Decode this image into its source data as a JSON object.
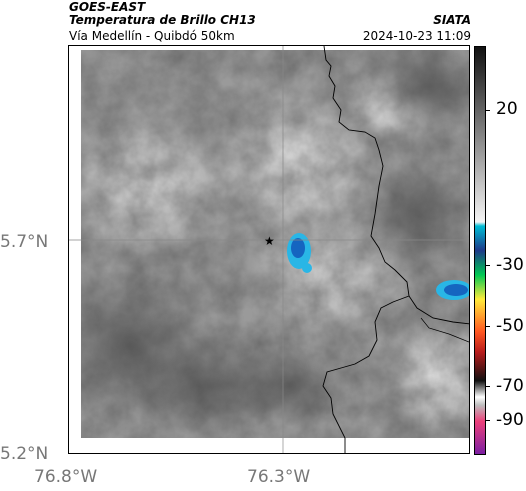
{
  "header": {
    "satellite": "GOES-EAST",
    "product": "Temperatura de Brillo CH13",
    "region": "Vía Medellín - Quibdó 50km",
    "organization": "SIATA",
    "datetime": "2024-10-23 11:09"
  },
  "map": {
    "lat_labels": [
      "5.7°N",
      "5.2°N"
    ],
    "lon_labels": [
      "76.8°W",
      "76.3°W"
    ],
    "marker": "star",
    "colors": {
      "gray_light": "#d9d9d9",
      "gray_dark": "#6e6e6e",
      "cloud_cyan": "#29b6e6",
      "cloud_blue": "#1565c0",
      "border_line": "#000000"
    }
  },
  "colorbar": {
    "tick_labels": [
      "20",
      "-30",
      "-50",
      "-70",
      "-90"
    ],
    "units": ""
  }
}
